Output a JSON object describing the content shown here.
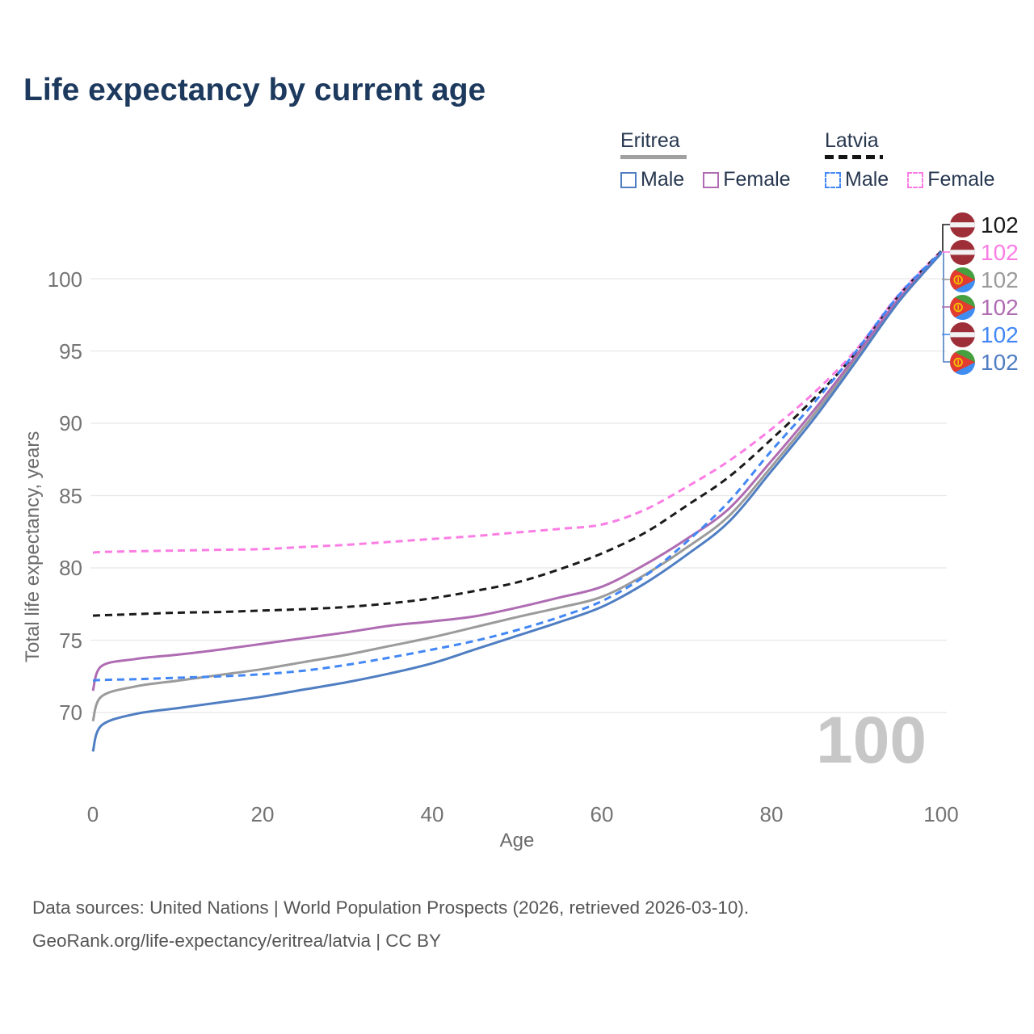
{
  "title": "Life expectancy by current age",
  "legend": {
    "groups": [
      {
        "country": "Eritrea",
        "line_style": "solid",
        "line_color": "#a0a0a0",
        "items": [
          {
            "label": "Male",
            "color": "#4f7ec2",
            "dashed": false
          },
          {
            "label": "Female",
            "color": "#af6cb2",
            "dashed": false
          }
        ]
      },
      {
        "country": "Latvia",
        "line_style": "dashed",
        "line_color": "#141414",
        "items": [
          {
            "label": "Male",
            "color": "#4287f5",
            "dashed": true
          },
          {
            "label": "Female",
            "color": "#fb7de4",
            "dashed": true
          }
        ]
      }
    ]
  },
  "chart_data": {
    "type": "line",
    "title": "Life expectancy by current age",
    "xlabel": "Age",
    "ylabel": "Total life expectancy, years",
    "x_ticks": [
      "0",
      "20",
      "40",
      "60",
      "80",
      "100"
    ],
    "y_ticks": [
      "100",
      "95",
      "90",
      "85",
      "80",
      "75",
      "70"
    ],
    "xlim": [
      0,
      100
    ],
    "ylim": [
      66.5,
      103
    ],
    "grid": "horizontal-only",
    "legend_position": "top-right",
    "series": [
      {
        "name": "Latvia Female",
        "country": "Latvia",
        "sex": "Female",
        "color": "#fb7de4",
        "dashed": true,
        "points": [
          [
            0,
            81.05
          ],
          [
            1,
            81.1
          ],
          [
            5,
            81.15
          ],
          [
            10,
            81.2
          ],
          [
            15,
            81.25
          ],
          [
            20,
            81.3
          ],
          [
            25,
            81.45
          ],
          [
            30,
            81.6
          ],
          [
            35,
            81.8
          ],
          [
            40,
            82.0
          ],
          [
            45,
            82.2
          ],
          [
            50,
            82.45
          ],
          [
            55,
            82.7
          ],
          [
            60,
            83.0
          ],
          [
            65,
            84.0
          ],
          [
            70,
            85.6
          ],
          [
            75,
            87.4
          ],
          [
            80,
            89.6
          ],
          [
            85,
            92.1
          ],
          [
            90,
            95.1
          ],
          [
            95,
            98.9
          ],
          [
            100,
            101.9
          ]
        ]
      },
      {
        "name": "Latvia",
        "country": "Latvia",
        "sex": "Both",
        "color": "#1a1a1a",
        "dashed": true,
        "points": [
          [
            0,
            76.7
          ],
          [
            1,
            76.72
          ],
          [
            5,
            76.8
          ],
          [
            10,
            76.9
          ],
          [
            15,
            76.95
          ],
          [
            20,
            77.05
          ],
          [
            25,
            77.15
          ],
          [
            30,
            77.3
          ],
          [
            35,
            77.55
          ],
          [
            40,
            77.9
          ],
          [
            45,
            78.4
          ],
          [
            50,
            79.0
          ],
          [
            55,
            79.9
          ],
          [
            60,
            81.0
          ],
          [
            65,
            82.4
          ],
          [
            70,
            84.3
          ],
          [
            75,
            86.3
          ],
          [
            80,
            88.9
          ],
          [
            85,
            91.7
          ],
          [
            90,
            94.9
          ],
          [
            95,
            98.8
          ],
          [
            100,
            101.9
          ]
        ]
      },
      {
        "name": "Eritrea",
        "country": "Eritrea",
        "sex": "Both",
        "color": "#9b9b9b",
        "dashed": false,
        "points": [
          [
            0,
            69.4
          ],
          [
            1,
            71.1
          ],
          [
            5,
            71.8
          ],
          [
            10,
            72.2
          ],
          [
            15,
            72.6
          ],
          [
            20,
            73.0
          ],
          [
            25,
            73.5
          ],
          [
            30,
            74.0
          ],
          [
            35,
            74.6
          ],
          [
            40,
            75.2
          ],
          [
            45,
            75.9
          ],
          [
            50,
            76.6
          ],
          [
            55,
            77.25
          ],
          [
            60,
            78.0
          ],
          [
            65,
            79.5
          ],
          [
            70,
            81.4
          ],
          [
            75,
            83.6
          ],
          [
            80,
            87.0
          ],
          [
            85,
            90.6
          ],
          [
            90,
            94.5
          ],
          [
            95,
            98.5
          ],
          [
            100,
            101.8
          ]
        ]
      },
      {
        "name": "Eritrea Female",
        "country": "Eritrea",
        "sex": "Female",
        "color": "#af6cb2",
        "dashed": false,
        "points": [
          [
            0,
            71.5
          ],
          [
            1,
            73.2
          ],
          [
            5,
            73.7
          ],
          [
            10,
            74.0
          ],
          [
            15,
            74.35
          ],
          [
            20,
            74.75
          ],
          [
            25,
            75.15
          ],
          [
            30,
            75.55
          ],
          [
            35,
            76.0
          ],
          [
            40,
            76.3
          ],
          [
            45,
            76.65
          ],
          [
            50,
            77.25
          ],
          [
            55,
            77.95
          ],
          [
            60,
            78.7
          ],
          [
            65,
            80.2
          ],
          [
            70,
            82.0
          ],
          [
            75,
            84.1
          ],
          [
            80,
            87.4
          ],
          [
            85,
            90.9
          ],
          [
            90,
            94.7
          ],
          [
            95,
            98.6
          ],
          [
            100,
            101.8
          ]
        ]
      },
      {
        "name": "Eritrea Male",
        "country": "Eritrea",
        "sex": "Male",
        "color": "#4f7ec2",
        "dashed": false,
        "points": [
          [
            0,
            67.3
          ],
          [
            1,
            69.1
          ],
          [
            5,
            69.9
          ],
          [
            10,
            70.3
          ],
          [
            15,
            70.7
          ],
          [
            20,
            71.1
          ],
          [
            25,
            71.6
          ],
          [
            30,
            72.1
          ],
          [
            35,
            72.7
          ],
          [
            40,
            73.4
          ],
          [
            45,
            74.35
          ],
          [
            50,
            75.3
          ],
          [
            55,
            76.25
          ],
          [
            60,
            77.3
          ],
          [
            65,
            78.9
          ],
          [
            70,
            80.9
          ],
          [
            75,
            83.2
          ],
          [
            80,
            86.7
          ],
          [
            85,
            90.3
          ],
          [
            90,
            94.3
          ],
          [
            95,
            98.4
          ],
          [
            100,
            101.75
          ]
        ]
      },
      {
        "name": "Latvia Male",
        "country": "Latvia",
        "sex": "Male",
        "color": "#4287f5",
        "dashed": true,
        "points": [
          [
            0,
            72.2
          ],
          [
            1,
            72.25
          ],
          [
            5,
            72.3
          ],
          [
            10,
            72.4
          ],
          [
            15,
            72.5
          ],
          [
            20,
            72.65
          ],
          [
            25,
            72.9
          ],
          [
            30,
            73.3
          ],
          [
            35,
            73.8
          ],
          [
            40,
            74.35
          ],
          [
            45,
            74.95
          ],
          [
            50,
            75.7
          ],
          [
            55,
            76.6
          ],
          [
            60,
            77.7
          ],
          [
            65,
            79.4
          ],
          [
            70,
            81.8
          ],
          [
            75,
            84.6
          ],
          [
            80,
            88.1
          ],
          [
            85,
            91.4
          ],
          [
            90,
            95.0
          ],
          [
            95,
            98.85
          ],
          [
            100,
            101.85
          ]
        ]
      }
    ]
  },
  "end_labels": [
    {
      "flag": "latvia",
      "series": "Latvia",
      "value": "102",
      "color": "#1a1a1a"
    },
    {
      "flag": "latvia",
      "series": "Latvia Female",
      "value": "102",
      "color": "#fb7de4"
    },
    {
      "flag": "eritrea",
      "series": "Eritrea",
      "value": "102",
      "color": "#9b9b9b"
    },
    {
      "flag": "eritrea",
      "series": "Eritrea Female",
      "value": "102",
      "color": "#af6cb2"
    },
    {
      "flag": "latvia",
      "series": "Latvia Male",
      "value": "102",
      "color": "#4287f5"
    },
    {
      "flag": "eritrea",
      "series": "Eritrea Male",
      "value": "102",
      "color": "#4f7ec2"
    }
  ],
  "watermark": "100",
  "footer": {
    "line1": "Data sources: United Nations | World Population Prospects (2026, retrieved 2026-03-10).",
    "line2": "GeoRank.org/life-expectancy/eritrea/latvia | CC BY"
  }
}
